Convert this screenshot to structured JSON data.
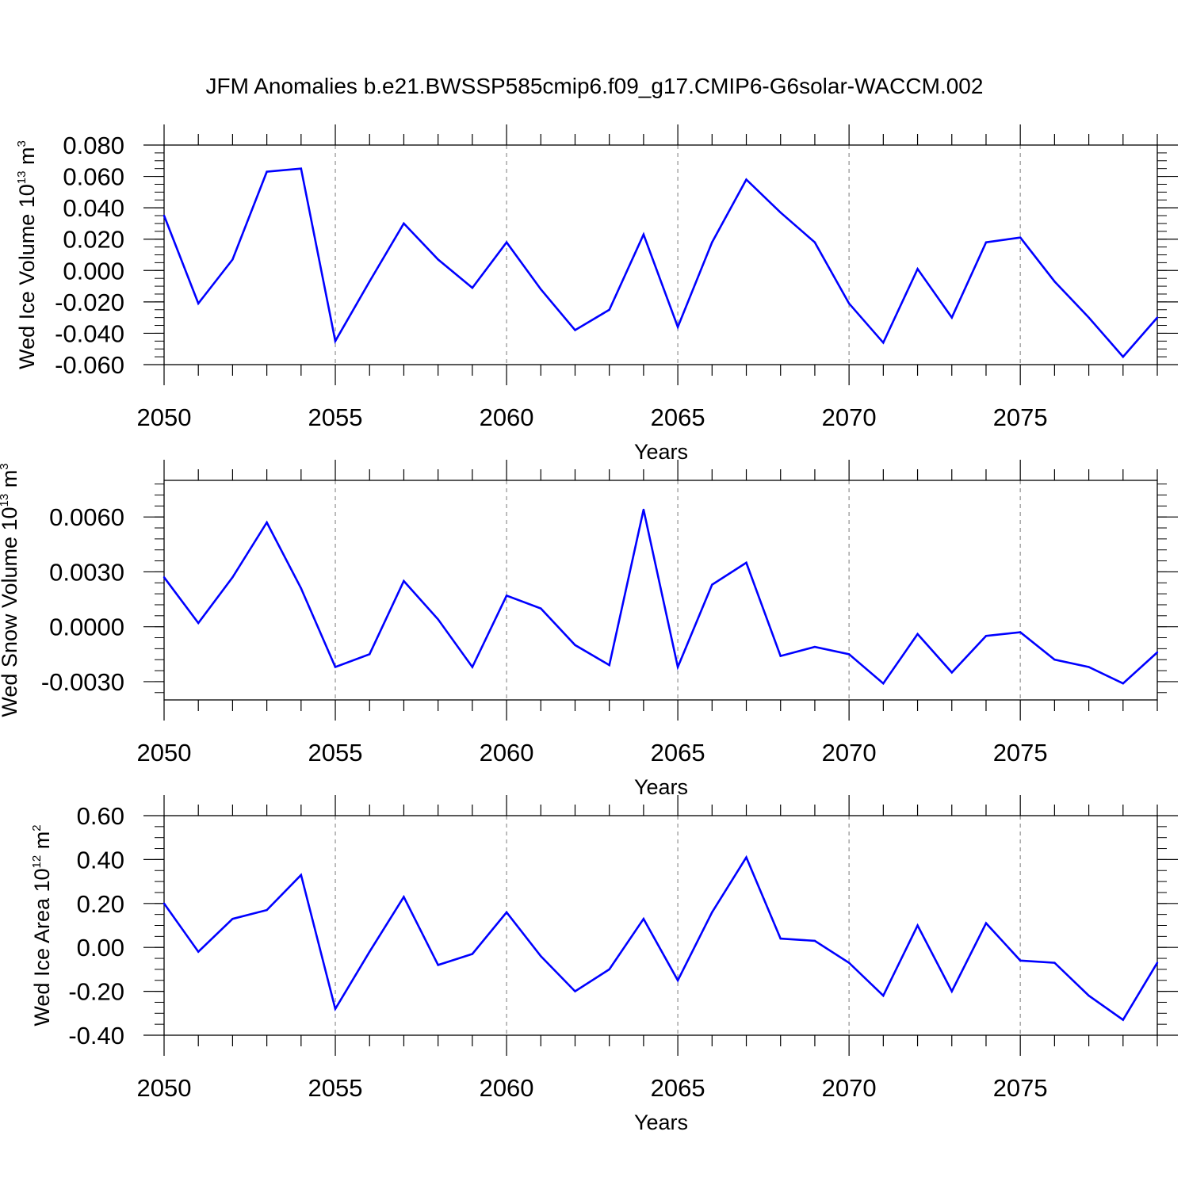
{
  "title": "JFM Anomalies b.e21.BWSSP585cmip6.f09_g17.CMIP6-G6solar-WACCM.002",
  "line_color": "#0000ff",
  "chart_data": [
    {
      "type": "line",
      "name": "ice-volume",
      "ylabel_main": "Wed Ice Volume 10",
      "ylabel_exp": "13",
      "ylabel_unit": " m",
      "ylabel_unit_exp": "3",
      "xlabel": "Years",
      "xlim": [
        2050,
        2079
      ],
      "ylim": [
        -0.06,
        0.08
      ],
      "xticks": [
        2050,
        2055,
        2060,
        2065,
        2070,
        2075
      ],
      "xtick_labels": [
        "2050",
        "2055",
        "2060",
        "2065",
        "2070",
        "2075"
      ],
      "yticks": [
        -0.06,
        -0.04,
        -0.02,
        0.0,
        0.02,
        0.04,
        0.06,
        0.08
      ],
      "ytick_labels": [
        "-0.060",
        "-0.040",
        "-0.020",
        "0.000",
        "0.020",
        "0.040",
        "0.060",
        "0.080"
      ],
      "yminor_step": 0.005,
      "x": [
        2050,
        2051,
        2052,
        2053,
        2054,
        2055,
        2056,
        2057,
        2058,
        2059,
        2060,
        2061,
        2062,
        2063,
        2064,
        2065,
        2066,
        2067,
        2068,
        2069,
        2070,
        2071,
        2072,
        2073,
        2074,
        2075,
        2076,
        2077,
        2078,
        2079
      ],
      "y": [
        0.035,
        -0.021,
        0.007,
        0.063,
        0.065,
        -0.045,
        -0.007,
        0.03,
        0.007,
        -0.011,
        0.018,
        -0.012,
        -0.038,
        -0.025,
        0.023,
        -0.036,
        0.018,
        0.058,
        0.037,
        0.018,
        -0.021,
        -0.046,
        0.001,
        -0.03,
        0.018,
        0.021,
        -0.007,
        -0.03,
        -0.055,
        -0.03
      ]
    },
    {
      "type": "line",
      "name": "snow-volume",
      "ylabel_main": "Wed Snow Volume 10",
      "ylabel_exp": "13",
      "ylabel_unit": " m",
      "ylabel_unit_exp": "3",
      "xlabel": "Years",
      "xlim": [
        2050,
        2079
      ],
      "ylim": [
        -0.004,
        0.008
      ],
      "xticks": [
        2050,
        2055,
        2060,
        2065,
        2070,
        2075
      ],
      "xtick_labels": [
        "2050",
        "2055",
        "2060",
        "2065",
        "2070",
        "2075"
      ],
      "yticks": [
        -0.003,
        0.0,
        0.003,
        0.006
      ],
      "ytick_labels": [
        "-0.0030",
        "0.0000",
        "0.0030",
        "0.0060"
      ],
      "yminor_step": 0.0006,
      "x": [
        2050,
        2051,
        2052,
        2053,
        2054,
        2055,
        2056,
        2057,
        2058,
        2059,
        2060,
        2061,
        2062,
        2063,
        2064,
        2065,
        2066,
        2067,
        2068,
        2069,
        2070,
        2071,
        2072,
        2073,
        2074,
        2075,
        2076,
        2077,
        2078,
        2079
      ],
      "y": [
        0.0027,
        0.0002,
        0.0027,
        0.0057,
        0.0021,
        -0.0022,
        -0.0015,
        0.0025,
        0.0004,
        -0.0022,
        0.0017,
        0.001,
        -0.001,
        -0.0021,
        0.0064,
        -0.0022,
        0.0023,
        0.0035,
        -0.0016,
        -0.0011,
        -0.0015,
        -0.0031,
        -0.0004,
        -0.0025,
        -0.0005,
        -0.0003,
        -0.0018,
        -0.0022,
        -0.0031,
        -0.0014
      ]
    },
    {
      "type": "line",
      "name": "ice-area",
      "ylabel_main": "Wed Ice Area 10",
      "ylabel_exp": "12",
      "ylabel_unit": " m",
      "ylabel_unit_exp": "2",
      "xlabel": "Years",
      "xlim": [
        2050,
        2079
      ],
      "ylim": [
        -0.4,
        0.6
      ],
      "xticks": [
        2050,
        2055,
        2060,
        2065,
        2070,
        2075
      ],
      "xtick_labels": [
        "2050",
        "2055",
        "2060",
        "2065",
        "2070",
        "2075"
      ],
      "yticks": [
        -0.4,
        -0.2,
        0.0,
        0.2,
        0.4,
        0.6
      ],
      "ytick_labels": [
        "-0.40",
        "-0.20",
        "0.00",
        "0.20",
        "0.40",
        "0.60"
      ],
      "yminor_step": 0.05,
      "x": [
        2050,
        2051,
        2052,
        2053,
        2054,
        2055,
        2056,
        2057,
        2058,
        2059,
        2060,
        2061,
        2062,
        2063,
        2064,
        2065,
        2066,
        2067,
        2068,
        2069,
        2070,
        2071,
        2072,
        2073,
        2074,
        2075,
        2076,
        2077,
        2078,
        2079
      ],
      "y": [
        0.2,
        -0.02,
        0.13,
        0.17,
        0.33,
        -0.28,
        -0.02,
        0.23,
        -0.08,
        -0.03,
        0.16,
        -0.04,
        -0.2,
        -0.1,
        0.13,
        -0.15,
        0.16,
        0.41,
        0.04,
        0.03,
        -0.07,
        -0.22,
        0.1,
        -0.2,
        0.11,
        -0.06,
        -0.07,
        -0.22,
        -0.33,
        -0.07
      ]
    }
  ]
}
